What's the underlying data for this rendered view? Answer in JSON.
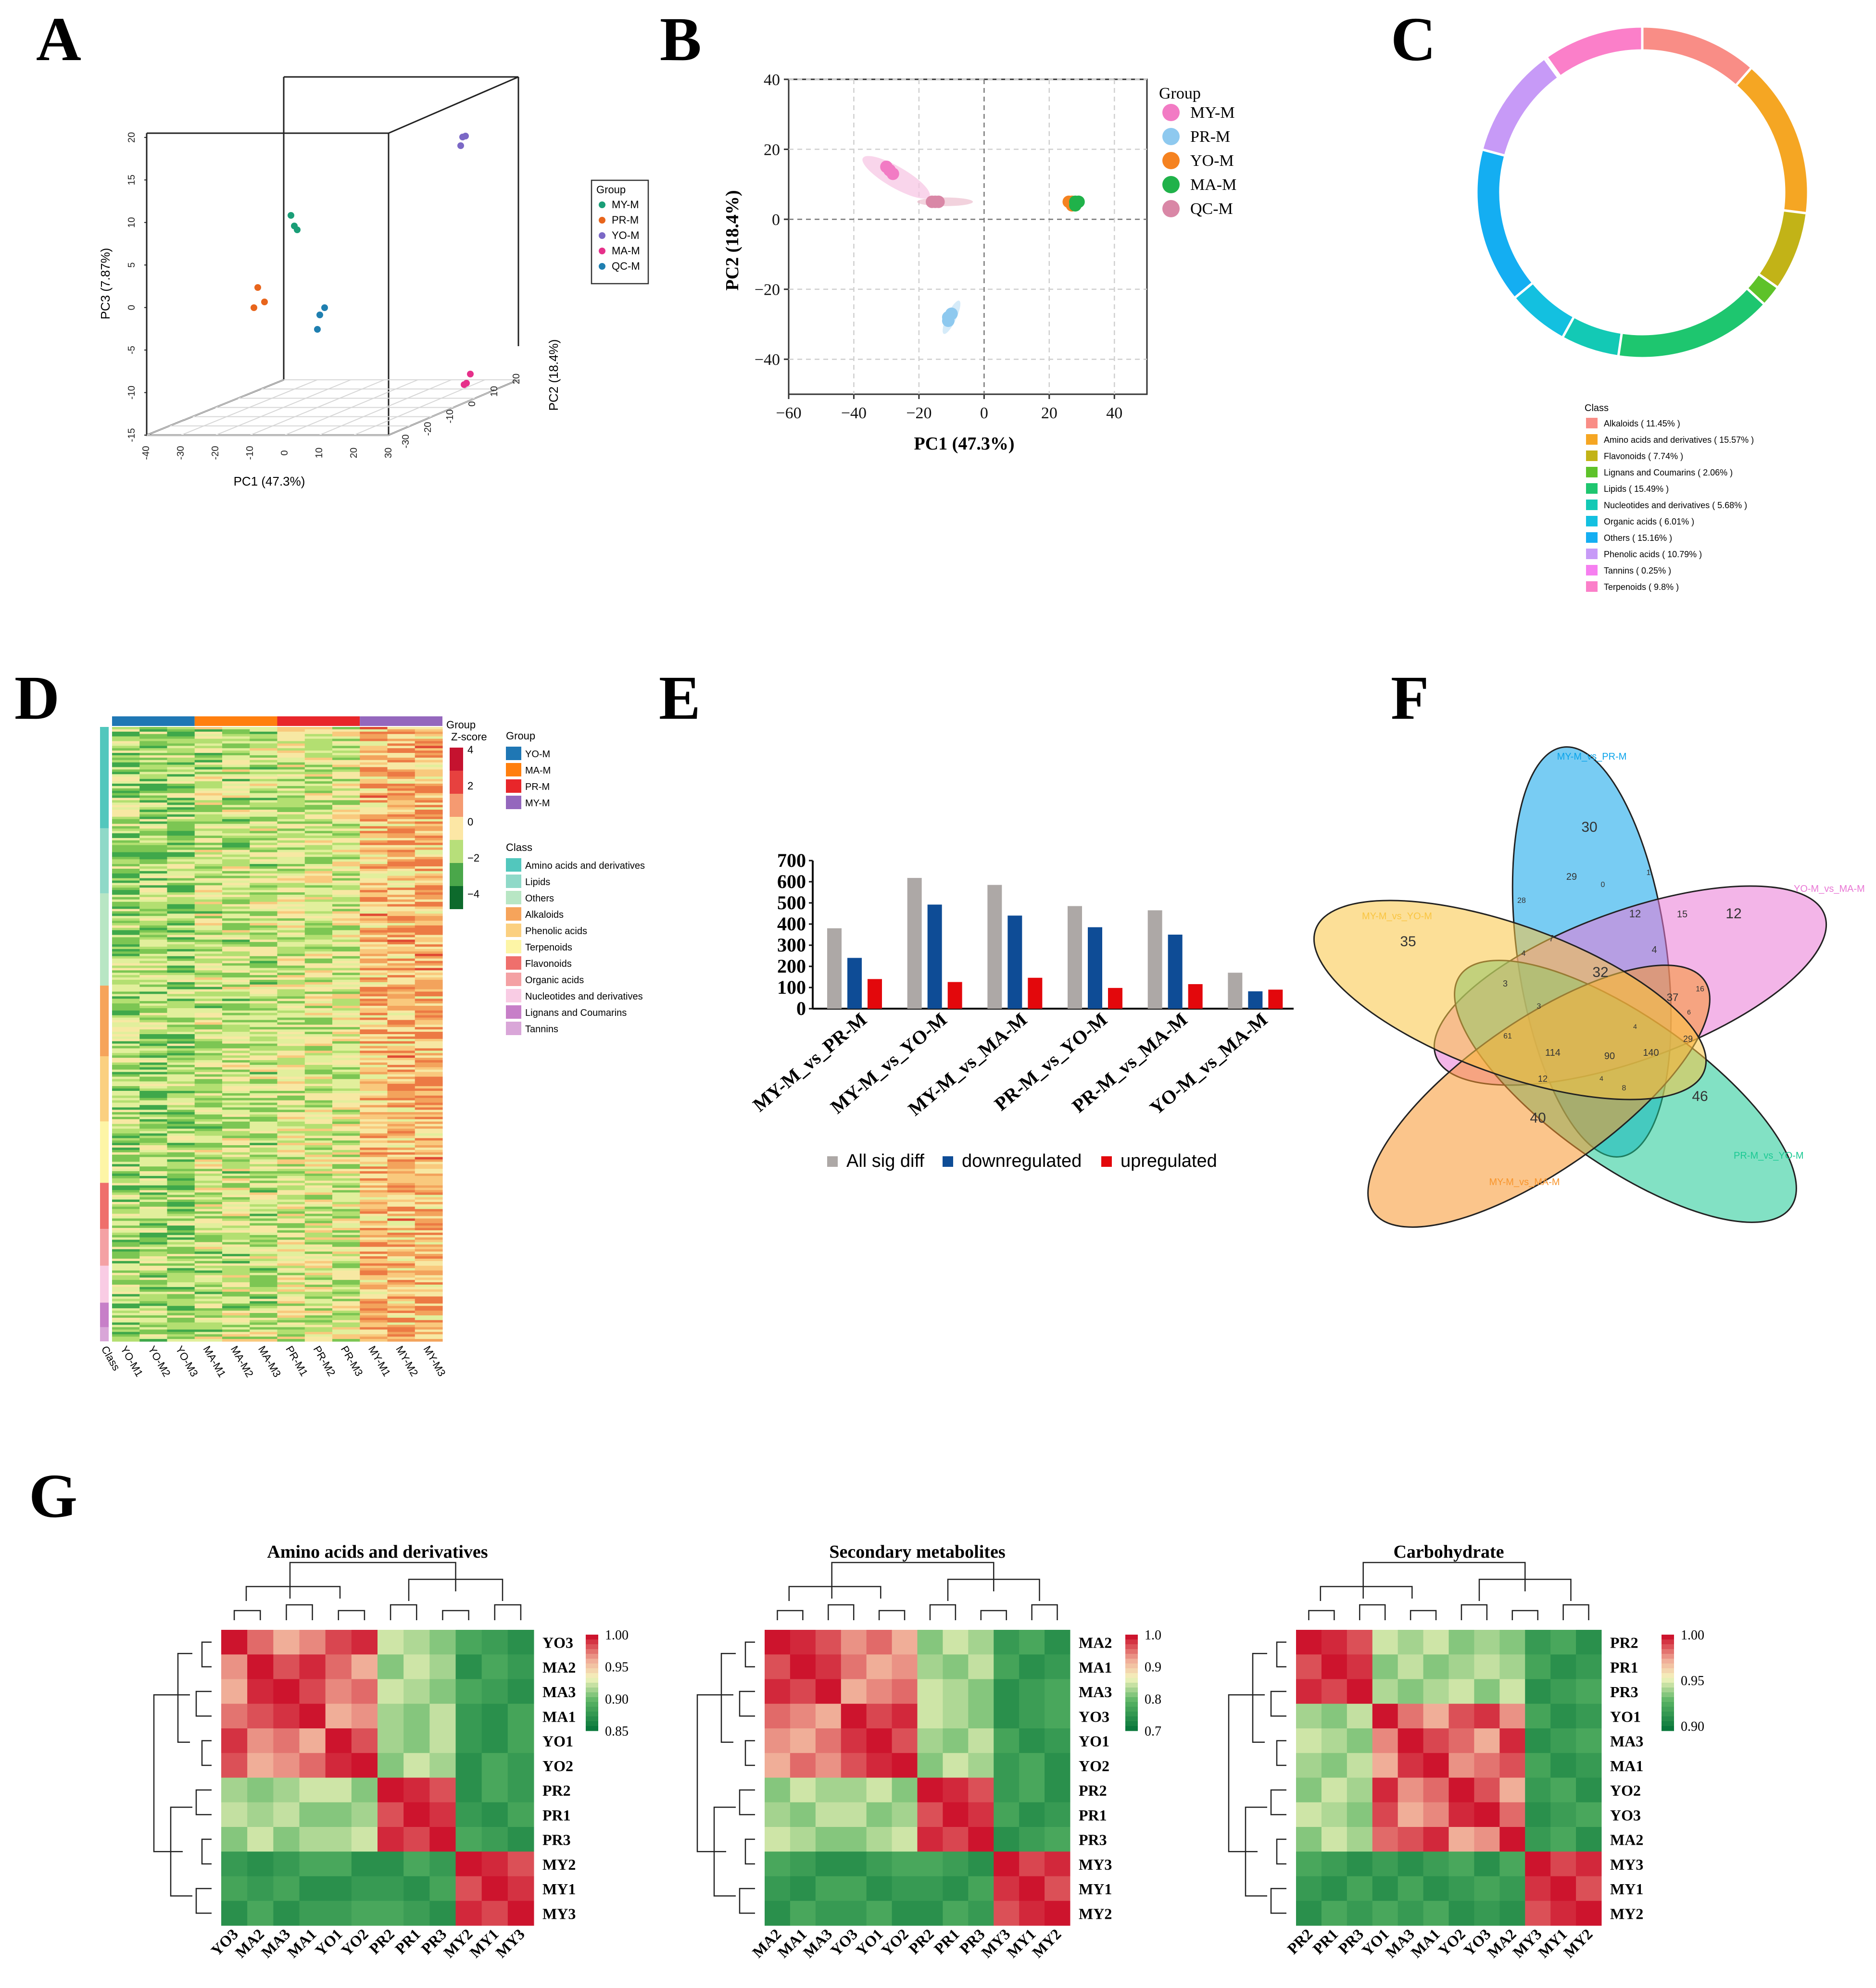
{
  "panel_labels": [
    "A",
    "B",
    "C",
    "D",
    "E",
    "F",
    "G"
  ],
  "chart_data": [
    {
      "panel": "A",
      "type": "scatter",
      "xlabel": "PC1 (47.3%)",
      "ylabel": "PC2 (18.4%)",
      "zlabel": "PC3 (7.87%)",
      "x_ticks": [
        "-40",
        "-30",
        "-20",
        "-10",
        "0",
        "10",
        "20",
        "30"
      ],
      "y_ticks": [
        "-30",
        "-20",
        "-10",
        "0",
        "10",
        "20"
      ],
      "z_ticks": [
        "-15",
        "-10",
        "-5",
        "0",
        "5",
        "10",
        "15",
        "20"
      ],
      "legend_title": "Group",
      "series": [
        {
          "name": "MY-M",
          "color": "#1a9e77"
        },
        {
          "name": "PR-M",
          "color": "#e8651c"
        },
        {
          "name": "YO-M",
          "color": "#7b68c6"
        },
        {
          "name": "MA-M",
          "color": "#e6308a"
        },
        {
          "name": "QC-M",
          "color": "#1f7fb0"
        }
      ]
    },
    {
      "panel": "B",
      "type": "scatter",
      "xlabel": "PC1 (47.3%)",
      "ylabel": "PC2 (18.4%)",
      "xlim": [
        -60,
        50
      ],
      "ylim": [
        -50,
        40
      ],
      "x_ticks": [
        "−60",
        "−40",
        "−20",
        "0",
        "20",
        "40"
      ],
      "y_ticks": [
        "40",
        "20",
        "0",
        "−20",
        "−40"
      ],
      "legend_title": "Group",
      "series": [
        {
          "name": "MY-M",
          "color": "#f27bc4",
          "points": [
            [
              -30,
              15
            ],
            [
              -28,
              13
            ],
            [
              -29,
              14
            ]
          ]
        },
        {
          "name": "PR-M",
          "color": "#8ec9ef",
          "points": [
            [
              -11,
              -28
            ],
            [
              -10,
              -27
            ],
            [
              -11,
              -29
            ]
          ]
        },
        {
          "name": "YO-M",
          "color": "#f58220",
          "points": [
            [
              27,
              4
            ],
            [
              26,
              5
            ],
            [
              27,
              5
            ]
          ]
        },
        {
          "name": "MA-M",
          "color": "#20b24a",
          "points": [
            [
              28,
              5
            ],
            [
              29,
              5
            ],
            [
              28,
              4
            ]
          ]
        },
        {
          "name": "QC-M",
          "color": "#d987a6",
          "points": [
            [
              -15,
              5
            ],
            [
              -14,
              5
            ],
            [
              -16,
              5
            ]
          ]
        }
      ]
    },
    {
      "panel": "C",
      "type": "pie",
      "legend_title": "Class",
      "slices": [
        {
          "label": "Alkaloids ( 11.45% )",
          "value": 11.45,
          "color": "#f98d86"
        },
        {
          "label": "Amino acids and derivatives ( 15.57% )",
          "value": 15.57,
          "color": "#f5a623"
        },
        {
          "label": "Flavonoids ( 7.74% )",
          "value": 7.74,
          "color": "#c2b317"
        },
        {
          "label": "Lignans and Coumarins ( 2.06% )",
          "value": 2.06,
          "color": "#5ec22a"
        },
        {
          "label": "Lipids ( 15.49% )",
          "value": 15.49,
          "color": "#1ec66f"
        },
        {
          "label": "Nucleotides and derivatives ( 5.68% )",
          "value": 5.68,
          "color": "#13c9b5"
        },
        {
          "label": "Organic acids ( 6.01% )",
          "value": 6.01,
          "color": "#13c0e0"
        },
        {
          "label": "Others ( 15.16% )",
          "value": 15.16,
          "color": "#14aef2"
        },
        {
          "label": "Phenolic acids ( 10.79% )",
          "value": 10.79,
          "color": "#c79af7"
        },
        {
          "label": "Tannins ( 0.25% )",
          "value": 0.25,
          "color": "#f67ff0"
        },
        {
          "label": "Terpenoids ( 9.8% )",
          "value": 9.8,
          "color": "#fb7fc9"
        }
      ]
    },
    {
      "panel": "D",
      "type": "heatmap",
      "columns": [
        "YO-M1",
        "YO-M2",
        "YO-M3",
        "MA-M1",
        "MA-M2",
        "MA-M3",
        "PR-M1",
        "PR-M2",
        "PR-M3",
        "MY-M1",
        "MY-M2",
        "MY-M3"
      ],
      "class_axis_label": "Class",
      "group_label": "Group",
      "zscore_label": "Z-score",
      "zscore_ticks": [
        "4",
        "2",
        "0",
        "−2",
        "−4"
      ],
      "groups": [
        {
          "name": "YO-M",
          "color": "#1f77b4"
        },
        {
          "name": "MA-M",
          "color": "#ff7f0e"
        },
        {
          "name": "PR-M",
          "color": "#e8262a"
        },
        {
          "name": "MY-M",
          "color": "#9467bd"
        }
      ],
      "class_legend_title": "Class",
      "classes": [
        {
          "name": "Amino acids and derivatives",
          "color": "#52c7bd"
        },
        {
          "name": "Lipids",
          "color": "#8fd9c8"
        },
        {
          "name": "Others",
          "color": "#b8e6c4"
        },
        {
          "name": "Alkaloids",
          "color": "#f6a45b"
        },
        {
          "name": "Phenolic acids",
          "color": "#fbd080"
        },
        {
          "name": "Terpenoids",
          "color": "#fdf5a6"
        },
        {
          "name": "Flavonoids",
          "color": "#ef6f6c"
        },
        {
          "name": "Organic acids",
          "color": "#f4a1a4"
        },
        {
          "name": "Nucleotides and derivatives",
          "color": "#f9cce4"
        },
        {
          "name": "Lignans and Coumarins",
          "color": "#c77fc8"
        },
        {
          "name": "Tannins",
          "color": "#d9a6d8"
        }
      ]
    },
    {
      "panel": "E",
      "type": "bar",
      "categories": [
        "MY-M_vs_PR-M",
        "MY-M_vs_YO-M",
        "MY-M_vs_MA-M",
        "PR-M_vs_YO-M",
        "PR-M_vs_MA-M",
        "YO-M_vs_MA-M"
      ],
      "ylim": [
        0,
        700
      ],
      "y_ticks": [
        "0",
        "100",
        "200",
        "300",
        "400",
        "500",
        "600",
        "700"
      ],
      "series": [
        {
          "name": "All sig diff",
          "color": "#ada8a6",
          "values": [
            380,
            618,
            585,
            485,
            465,
            170
          ]
        },
        {
          "name": "downregulated",
          "color": "#0e4c96",
          "values": [
            240,
            492,
            440,
            385,
            350,
            82
          ]
        },
        {
          "name": "upregulated",
          "color": "#e3080c",
          "values": [
            140,
            126,
            146,
            98,
            116,
            90
          ]
        }
      ]
    },
    {
      "panel": "F",
      "type": "venn",
      "sets": [
        {
          "name": "MY-M_vs_PR-M",
          "color": "#0aa3ea"
        },
        {
          "name": "YO-M_vs_MA-M",
          "color": "#e978d5"
        },
        {
          "name": "PR-M_vs_YO-M",
          "color": "#1bc993"
        },
        {
          "name": "MY-M_vs_MA-M",
          "color": "#f8952c"
        },
        {
          "name": "MY-M_vs_YO-M",
          "color": "#f9c542"
        }
      ],
      "counts": [
        "30",
        "12",
        "46",
        "40",
        "35",
        "29",
        "1",
        "0",
        "12",
        "15",
        "28",
        "7",
        "4",
        "32",
        "37",
        "16",
        "4",
        "3",
        "3",
        "61",
        "114",
        "90",
        "140",
        "29",
        "12",
        "8",
        "4",
        "6",
        "4"
      ]
    },
    {
      "panel": "G",
      "type": "heatmap",
      "title": "Amino acids and derivatives",
      "rows": [
        "YO3",
        "MA2",
        "MA3",
        "MA1",
        "YO1",
        "YO2",
        "PR2",
        "PR1",
        "PR3",
        "MY2",
        "MY1",
        "MY3"
      ],
      "cols": [
        "YO3",
        "MA2",
        "MA3",
        "MA1",
        "YO1",
        "YO2",
        "PR2",
        "PR1",
        "PR3",
        "MY2",
        "MY1",
        "MY3"
      ],
      "colorbar": [
        "1.00",
        "0.95",
        "0.90",
        "0.85"
      ],
      "vmin": 0.84,
      "vmax": 1.0
    },
    {
      "panel": "G",
      "type": "heatmap",
      "title": "Secondary metabolites",
      "rows": [
        "MA2",
        "MA1",
        "MA3",
        "YO3",
        "YO1",
        "YO2",
        "PR2",
        "PR1",
        "PR3",
        "MY3",
        "MY1",
        "MY2"
      ],
      "cols": [
        "MA2",
        "MA1",
        "MA3",
        "YO3",
        "YO1",
        "YO2",
        "PR2",
        "PR1",
        "PR3",
        "MY3",
        "MY1",
        "MY2"
      ],
      "colorbar": [
        "1.0",
        "0.9",
        "0.8",
        "0.7"
      ],
      "vmin": 0.7,
      "vmax": 1.0
    },
    {
      "panel": "G",
      "type": "heatmap",
      "title": "Carbohydrate",
      "rows": [
        "PR2",
        "PR1",
        "PR3",
        "YO1",
        "MA3",
        "MA1",
        "YO2",
        "YO3",
        "MA2",
        "MY3",
        "MY1",
        "MY2"
      ],
      "cols": [
        "PR2",
        "PR1",
        "PR3",
        "YO1",
        "MA3",
        "MA1",
        "YO2",
        "YO3",
        "MA2",
        "MY3",
        "MY1",
        "MY2"
      ],
      "colorbar": [
        "1.00",
        "0.95",
        "0.90"
      ],
      "vmin": 0.88,
      "vmax": 1.0
    }
  ]
}
